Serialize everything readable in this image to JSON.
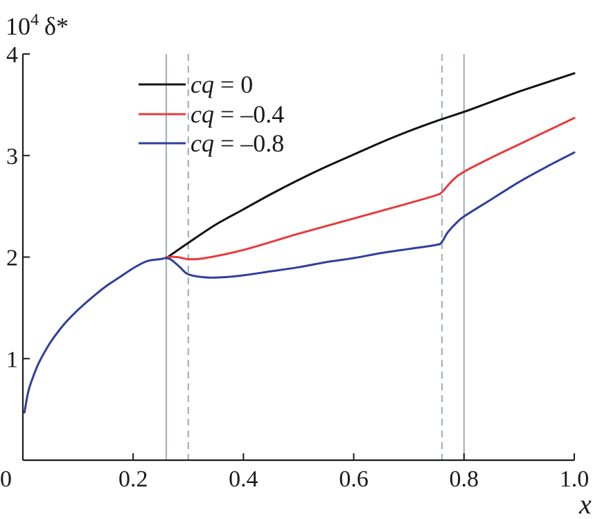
{
  "chart_data": {
    "type": "line",
    "title": "",
    "xlabel": "x",
    "ylabel": "10⁴ δ*",
    "ylabel_base": "10",
    "ylabel_exp": "4",
    "ylabel_sym": "δ*",
    "xlim": [
      0,
      1.0
    ],
    "ylim": [
      0,
      4
    ],
    "x_ticks": [
      0,
      0.2,
      0.4,
      0.6,
      0.8,
      1.0
    ],
    "x_tick_labels": [
      "0",
      "0.2",
      "0.4",
      "0.6",
      "0.8",
      "1.0"
    ],
    "y_ticks": [
      1,
      2,
      3,
      4
    ],
    "y_tick_labels": [
      "1",
      "2",
      "3",
      "4"
    ],
    "grid": false,
    "legend_position": "top-center",
    "vertical_lines": [
      {
        "x": 0.26,
        "style": "solid",
        "color": "#9fb2c1"
      },
      {
        "x": 0.3,
        "style": "dashed",
        "color": "#9fb2c1"
      },
      {
        "x": 0.76,
        "style": "dashed",
        "color": "#9fb2c1"
      },
      {
        "x": 0.8,
        "style": "solid",
        "color": "#9fb2c1"
      }
    ],
    "series": [
      {
        "name": "cq = 0",
        "label_var": "cq",
        "label_rest": " = 0",
        "color": "#111111",
        "x": [
          0.26,
          0.3,
          0.35,
          0.4,
          0.45,
          0.5,
          0.55,
          0.6,
          0.65,
          0.7,
          0.75,
          0.8,
          0.85,
          0.9,
          0.95,
          1.0
        ],
        "y": [
          1.99,
          2.14,
          2.32,
          2.47,
          2.62,
          2.76,
          2.89,
          3.01,
          3.13,
          3.24,
          3.34,
          3.43,
          3.53,
          3.63,
          3.72,
          3.81
        ]
      },
      {
        "name": "cq = –0.4",
        "label_var": "cq",
        "label_rest": " = –0.4",
        "color": "#e83a3a",
        "x": [
          0.26,
          0.28,
          0.3,
          0.33,
          0.4,
          0.5,
          0.6,
          0.7,
          0.75,
          0.76,
          0.78,
          0.8,
          0.85,
          0.9,
          0.95,
          1.0
        ],
        "y": [
          2.0,
          2.0,
          1.98,
          1.99,
          2.07,
          2.23,
          2.38,
          2.53,
          2.61,
          2.64,
          2.76,
          2.84,
          2.98,
          3.11,
          3.24,
          3.37
        ]
      },
      {
        "name": "cq = –0.8",
        "label_var": "cq",
        "label_rest": " = –0.8",
        "color": "#2f3e9e",
        "x": [
          0.003,
          0.01,
          0.02,
          0.03,
          0.05,
          0.075,
          0.1,
          0.125,
          0.15,
          0.175,
          0.2,
          0.225,
          0.25,
          0.26,
          0.27,
          0.285,
          0.3,
          0.33,
          0.36,
          0.4,
          0.45,
          0.5,
          0.55,
          0.6,
          0.65,
          0.7,
          0.75,
          0.76,
          0.77,
          0.785,
          0.8,
          0.85,
          0.9,
          0.95,
          1.0
        ],
        "y": [
          0.47,
          0.68,
          0.84,
          0.97,
          1.16,
          1.34,
          1.48,
          1.6,
          1.71,
          1.8,
          1.89,
          1.96,
          1.98,
          1.99,
          1.97,
          1.9,
          1.83,
          1.8,
          1.8,
          1.82,
          1.86,
          1.9,
          1.95,
          1.99,
          2.04,
          2.08,
          2.12,
          2.15,
          2.24,
          2.33,
          2.4,
          2.57,
          2.74,
          2.89,
          3.03
        ]
      }
    ]
  }
}
